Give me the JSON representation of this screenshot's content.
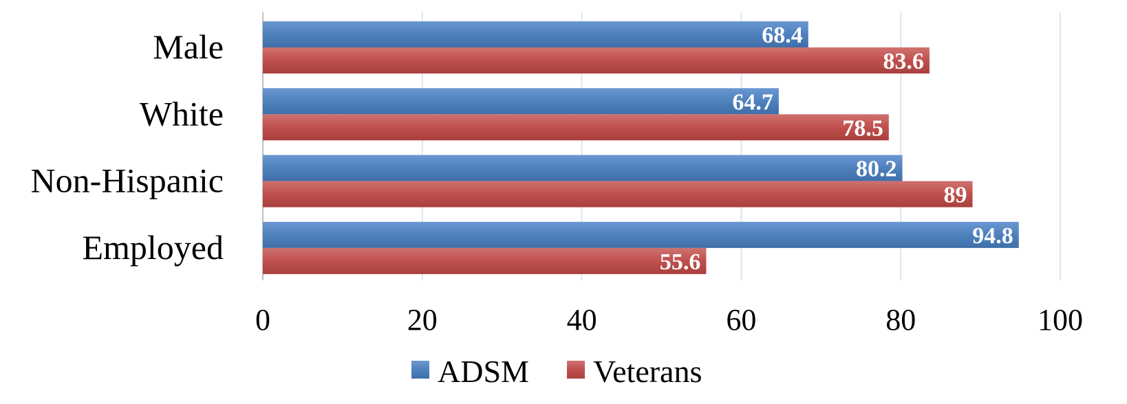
{
  "chart_data": {
    "type": "bar",
    "orientation": "horizontal",
    "categories": [
      "Male",
      "White",
      "Non-Hispanic",
      "Employed"
    ],
    "series": [
      {
        "name": "ADSM",
        "values": [
          68.4,
          64.7,
          80.2,
          94.8
        ],
        "color": "#4f81bd"
      },
      {
        "name": "Veterans",
        "values": [
          83.6,
          78.5,
          89,
          55.6
        ],
        "color": "#c0504d"
      }
    ],
    "xlim": [
      0,
      100
    ],
    "xticks": [
      0,
      20,
      40,
      60,
      80,
      100
    ],
    "xtick_labels": [
      "0",
      "20",
      "40",
      "60",
      "80",
      "100"
    ],
    "data_labels": {
      "ADSM": [
        "68.4",
        "64.7",
        "80.2",
        "94.8"
      ],
      "Veterans": [
        "83.6",
        "78.5",
        "89",
        "55.6"
      ]
    },
    "title": "",
    "xlabel": "",
    "ylabel": "",
    "grid": true,
    "legend": {
      "position": "bottom",
      "entries": [
        "ADSM",
        "Veterans"
      ]
    }
  }
}
